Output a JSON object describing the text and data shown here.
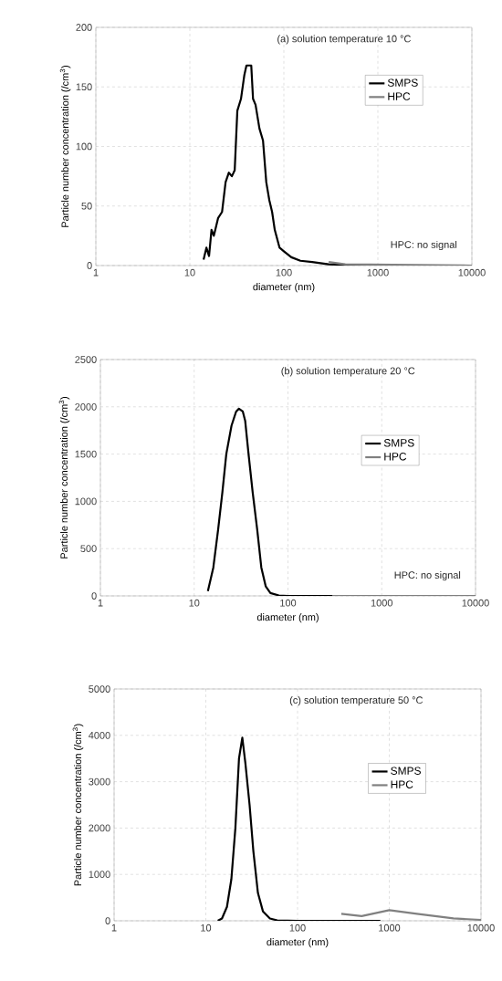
{
  "chart_data": [
    {
      "type": "line",
      "title": "(a) solution temperature 10 °C",
      "xlabel": "diameter (nm)",
      "ylabel": "Particle number concentration (/cm$^{3}$)",
      "log": "x",
      "xlim": [
        1,
        10000
      ],
      "xticks": [
        1,
        10,
        100,
        1000,
        10000
      ],
      "ylim": [
        0,
        200
      ],
      "yticks": [
        0,
        50,
        100,
        150,
        200
      ],
      "grid": true,
      "legend": "top right",
      "line_style": "solid",
      "annotations": [
        "HPC: no signal"
      ],
      "series": [
        {
          "name": "SMPS",
          "color": "#000000",
          "x": [
            14,
            15,
            16,
            17,
            18,
            20,
            22,
            24,
            26,
            28,
            30,
            32,
            35,
            38,
            40,
            45,
            47,
            50,
            55,
            60,
            65,
            70,
            75,
            80,
            90,
            100,
            120,
            150,
            200,
            300,
            500,
            1000,
            10000
          ],
          "values": [
            5,
            15,
            8,
            30,
            25,
            40,
            45,
            70,
            78,
            75,
            80,
            130,
            140,
            160,
            168,
            168,
            140,
            135,
            115,
            105,
            70,
            55,
            45,
            30,
            15,
            12,
            7,
            4,
            3,
            1,
            0.5,
            0,
            0
          ]
        },
        {
          "name": "HPC",
          "color": "#808080",
          "x": [
            300,
            450,
            10000
          ],
          "values": [
            3,
            1,
            0
          ]
        }
      ]
    },
    {
      "type": "line",
      "title": "(b) solution temperature 20 °C",
      "xlabel": "diameter (nm)",
      "ylabel": "Particle number concentration (/cm$^{3}$)",
      "log": "x",
      "xlim": [
        1,
        10000
      ],
      "xticks": [
        1,
        10,
        100,
        1000,
        10000
      ],
      "ylim": [
        0,
        2500
      ],
      "yticks": [
        0,
        500,
        1000,
        1500,
        2000,
        2500
      ],
      "grid": true,
      "legend": "right",
      "line_style": "solid",
      "annotations": [
        "HPC: no signal"
      ],
      "series": [
        {
          "name": "SMPS",
          "color": "#000000",
          "x": [
            14,
            16,
            18,
            20,
            22,
            25,
            28,
            30,
            33,
            35,
            38,
            42,
            47,
            52,
            58,
            65,
            80,
            100,
            300
          ],
          "values": [
            50,
            300,
            700,
            1100,
            1500,
            1800,
            1950,
            1980,
            1950,
            1850,
            1500,
            1100,
            700,
            300,
            100,
            30,
            5,
            0,
            0
          ]
        },
        {
          "name": "HPC",
          "color": "#808080",
          "x": [
            300,
            10000
          ],
          "values": [
            0,
            0
          ]
        }
      ]
    },
    {
      "type": "line",
      "title": "(c) solution temperature 50 °C",
      "xlabel": "diameter (nm)",
      "ylabel": "Particle number concentration (/cm$^{3}$)",
      "log": "x",
      "xlim": [
        1,
        10000
      ],
      "xticks": [
        1,
        10,
        100,
        1000,
        10000
      ],
      "ylim": [
        0,
        5000
      ],
      "yticks": [
        0,
        1000,
        2000,
        3000,
        4000,
        5000
      ],
      "grid": true,
      "legend": "right",
      "line_style": "solid",
      "series": [
        {
          "name": "SMPS",
          "color": "#000000",
          "x": [
            13.5,
            15,
            17,
            19,
            21,
            23,
            25,
            27,
            30,
            33,
            37,
            42,
            50,
            60,
            100,
            800
          ],
          "values": [
            0,
            50,
            300,
            900,
            2000,
            3500,
            3950,
            3400,
            2500,
            1500,
            600,
            200,
            50,
            10,
            0,
            0
          ]
        },
        {
          "name": "HPC",
          "color": "#808080",
          "x": [
            300,
            500,
            1000,
            2000,
            5000,
            10000
          ],
          "values": [
            150,
            100,
            230,
            150,
            50,
            20
          ]
        }
      ]
    }
  ]
}
